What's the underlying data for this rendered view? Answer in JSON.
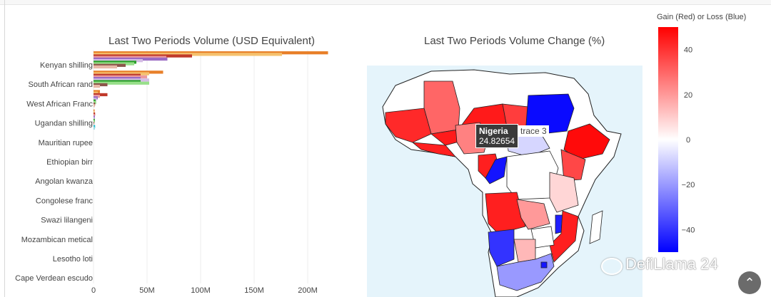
{
  "chart_data": [
    {
      "type": "bar",
      "orientation": "horizontal",
      "title": "Last Two Periods Volume (USD Equivalent)",
      "categories": [
        "Kenyan shilling",
        "South African rand",
        "West African Franc",
        "Ugandan shilling",
        "Mauritian rupee",
        "Ethiopian birr",
        "Angolan kwanza",
        "Congolese franc",
        "Swazi lilangeni",
        "Mozambican metical",
        "Lesotho loti",
        "Cape Verdean escudo"
      ],
      "x_ticks": [
        "0",
        "50M",
        "100M",
        "150M",
        "200M"
      ],
      "xlim": [
        0,
        220000000
      ],
      "series": [
        {
          "name": "",
          "color": "#e8802a",
          "values": [
            219000000,
            65000000,
            6000000,
            1000000,
            0,
            0,
            0,
            0,
            0,
            0,
            0,
            0
          ]
        },
        {
          "name": "",
          "color": "#f5c16e",
          "values": [
            176000000,
            52000000,
            4000000,
            800000,
            0,
            0,
            0,
            0,
            0,
            0,
            0,
            0
          ]
        },
        {
          "name": "",
          "color": "#c0392b",
          "values": [
            92000000,
            44000000,
            13000000,
            1500000,
            0,
            0,
            0,
            0,
            0,
            0,
            0,
            0
          ]
        },
        {
          "name": "",
          "color": "#ec9aa0",
          "values": [
            68000000,
            50000000,
            6000000,
            1200000,
            0,
            0,
            0,
            0,
            0,
            0,
            0,
            0
          ]
        },
        {
          "name": "",
          "color": "#9b6bc4",
          "values": [
            69000000,
            44000000,
            4000000,
            1300000,
            0,
            0,
            0,
            0,
            0,
            0,
            0,
            0
          ]
        },
        {
          "name": "",
          "color": "#d4bde5",
          "values": [
            46000000,
            52000000,
            3000000,
            1000000,
            0,
            0,
            0,
            0,
            0,
            0,
            0,
            0
          ]
        },
        {
          "name": "",
          "color": "#2ca02c",
          "values": [
            40000000,
            44000000,
            2000000,
            1200000,
            0,
            0,
            0,
            0,
            0,
            0,
            0,
            0
          ]
        },
        {
          "name": "",
          "color": "#98df8a",
          "values": [
            38000000,
            52000000,
            2500000,
            900000,
            0,
            0,
            0,
            0,
            0,
            0,
            0,
            0
          ]
        },
        {
          "name": "",
          "color": "#8c564b",
          "values": [
            30000000,
            13000000,
            1500000,
            700000,
            0,
            0,
            0,
            0,
            0,
            0,
            0,
            0
          ]
        },
        {
          "name": "",
          "color": "#e8b8a8",
          "values": [
            22000000,
            6000000,
            1200000,
            600000,
            0,
            0,
            0,
            0,
            0,
            0,
            0,
            0
          ]
        },
        {
          "name": "",
          "color": "#17becf",
          "values": [
            0,
            0,
            0,
            1500000,
            0,
            0,
            0,
            0,
            0,
            0,
            0,
            0
          ]
        },
        {
          "name": "",
          "color": "#9edae5",
          "values": [
            0,
            0,
            0,
            1200000,
            0,
            0,
            0,
            0,
            0,
            0,
            0,
            0
          ]
        }
      ]
    },
    {
      "type": "choropleth",
      "title": "Last Two Periods Volume Change (%)",
      "colorbar": {
        "title": "Gain (Red) or Loss (Blue)",
        "range": [
          -50,
          50
        ],
        "ticks": [
          "40",
          "20",
          "0",
          "−20",
          "−40"
        ],
        "colorscale": [
          "#0000ff",
          "#ffffff",
          "#ff0000"
        ]
      },
      "hover": {
        "country": "Nigeria",
        "value": "24.82654",
        "trace": "trace 3"
      },
      "colors": {
        "ocean": "#e5f4fb",
        "land_nodata": "#ffffff",
        "border": "#222222"
      }
    }
  ],
  "watermark": "DefiLlama 24",
  "icons": {
    "scroll_top": "chevron-up-icon",
    "watermark_logo": "wechat-icon"
  }
}
